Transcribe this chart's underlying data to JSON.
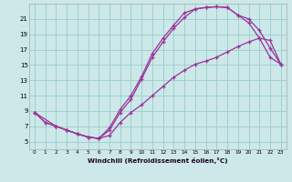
{
  "xlabel": "Windchill (Refroidissement éolien,°C)",
  "bg_color": "#cce8e8",
  "grid_color": "#99cccc",
  "line_color": "#993399",
  "xlim": [
    -0.5,
    23.5
  ],
  "ylim": [
    4.0,
    23.0
  ],
  "xticks": [
    0,
    1,
    2,
    3,
    4,
    5,
    6,
    7,
    8,
    9,
    10,
    11,
    12,
    13,
    14,
    15,
    16,
    17,
    18,
    19,
    20,
    21,
    22,
    23
  ],
  "yticks": [
    5,
    7,
    9,
    11,
    13,
    15,
    17,
    19,
    21
  ],
  "x_upper": [
    0,
    1,
    2,
    3,
    4,
    5,
    6,
    7,
    8,
    9,
    10,
    11,
    12,
    13,
    14,
    15,
    16,
    17,
    18,
    19,
    20,
    21,
    22,
    23
  ],
  "y_upper": [
    8.8,
    7.5,
    7.0,
    6.5,
    6.0,
    5.6,
    5.4,
    6.8,
    9.2,
    11.0,
    13.5,
    16.5,
    18.5,
    20.2,
    21.8,
    22.3,
    22.5,
    22.6,
    22.5,
    21.5,
    21.0,
    19.5,
    17.2,
    15.1
  ],
  "x_mid": [
    0,
    1,
    2,
    3,
    4,
    5,
    6,
    7,
    8,
    9,
    10,
    11,
    12,
    13,
    14,
    15,
    16,
    17,
    18,
    19,
    20,
    21,
    22,
    23
  ],
  "y_mid": [
    8.8,
    7.5,
    7.0,
    6.5,
    6.0,
    5.6,
    5.4,
    6.5,
    8.8,
    10.5,
    13.2,
    16.0,
    18.0,
    19.8,
    21.2,
    22.3,
    22.5,
    22.6,
    22.5,
    21.5,
    20.5,
    18.5,
    16.0,
    15.1
  ],
  "x_lower": [
    0,
    2,
    3,
    4,
    5,
    6,
    7,
    8,
    9,
    10,
    11,
    12,
    13,
    14,
    15,
    16,
    17,
    18,
    19,
    20,
    21,
    22,
    23
  ],
  "y_lower": [
    8.8,
    7.0,
    6.5,
    6.0,
    5.6,
    5.4,
    5.8,
    7.5,
    8.8,
    9.8,
    11.0,
    12.2,
    13.4,
    14.3,
    15.1,
    15.5,
    16.0,
    16.7,
    17.4,
    18.0,
    18.5,
    18.2,
    15.1
  ]
}
